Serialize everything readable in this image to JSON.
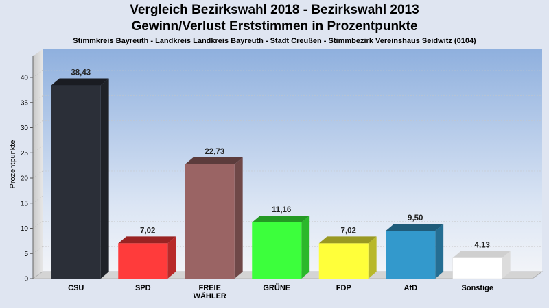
{
  "header": {
    "title_line1": "Vergleich Bezirkswahl 2018 - Bezirkswahl 2013",
    "title_line2": "Gewinn/Verlust Erststimmen in Prozentpunkte",
    "subtitle": "Stimmkreis Bayreuth - Landkreis Landkreis Bayreuth - Stadt Creußen - Stimmbezirk Vereinshaus Seidwitz (0104)"
  },
  "chart_data": {
    "type": "bar",
    "title": "Vergleich Bezirkswahl 2018 - Bezirkswahl 2013\nGewinn/Verlust Erststimmen in Prozentpunkte",
    "subtitle": "Stimmkreis Bayreuth - Landkreis Landkreis Bayreuth - Stadt Creußen - Stimmbezirk Vereinshaus Seidwitz (0104)",
    "ylabel": "Prozentpunkte",
    "xlabel": "",
    "ylim": [
      0,
      40
    ],
    "yticks": [
      0,
      5,
      10,
      15,
      20,
      25,
      30,
      35,
      40
    ],
    "grid": true,
    "categories": [
      "CSU",
      "SPD",
      "FREIE WÄHLER",
      "GRÜNE",
      "FDP",
      "AfD",
      "Sonstige"
    ],
    "category_lines": [
      [
        "CSU"
      ],
      [
        "SPD"
      ],
      [
        "FREIE",
        "WÄHLER"
      ],
      [
        "GRÜNE"
      ],
      [
        "FDP"
      ],
      [
        "AfD"
      ],
      [
        "Sonstige"
      ]
    ],
    "values": [
      38.43,
      7.02,
      22.73,
      11.16,
      7.02,
      9.5,
      4.13
    ],
    "value_labels": [
      "38,43",
      "7,02",
      "22,73",
      "11,16",
      "7,02",
      "9,50",
      "4,13"
    ],
    "colors": [
      "#2b2f38",
      "#ff3b3b",
      "#9a6464",
      "#3cff3c",
      "#ffff3a",
      "#3399cc",
      "#ffffff"
    ]
  }
}
